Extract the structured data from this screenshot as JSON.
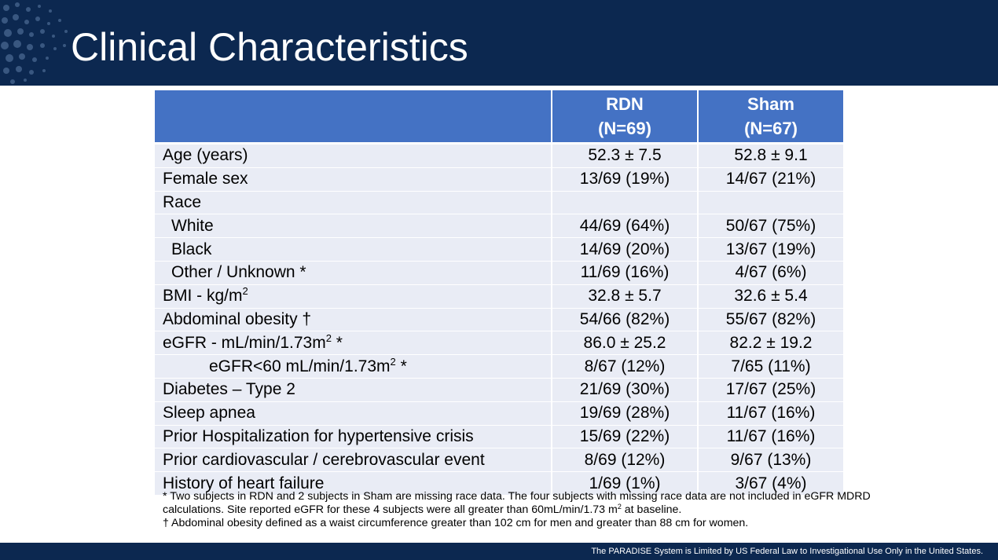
{
  "header": {
    "title": "Clinical Characteristics"
  },
  "table": {
    "columns": [
      "",
      "RDN\n(N=69)",
      "Sham\n(N=67)"
    ],
    "col_rdn": {
      "line1": "RDN",
      "line2": "(N=69)"
    },
    "col_sham": {
      "line1": "Sham",
      "line2": "(N=67)"
    },
    "rows": [
      {
        "label": "Age (years)",
        "rdn": "52.3 ± 7.5",
        "sham": "52.8 ± 9.1"
      },
      {
        "label": "Female sex",
        "rdn": "13/69 (19%)",
        "sham": "14/67 (21%)"
      },
      {
        "label": "Race",
        "rdn": "",
        "sham": ""
      },
      {
        "label": "White",
        "rdn": "44/69 (64%)",
        "sham": "50/67 (75%)"
      },
      {
        "label": "Black",
        "rdn": "14/69 (20%)",
        "sham": "13/67 (19%)"
      },
      {
        "label": "Other / Unknown *",
        "rdn": "11/69 (16%)",
        "sham": "4/67 (6%)"
      },
      {
        "label": "BMI - kg/m",
        "label_sup": "2",
        "rdn": "32.8 ± 5.7",
        "sham": "32.6 ± 5.4"
      },
      {
        "label": "Abdominal obesity †",
        "rdn": "54/66 (82%)",
        "sham": "55/67 (82%)"
      },
      {
        "label": "eGFR - mL/min/1.73m",
        "label_sup": "2",
        "label_after": " *",
        "rdn": "86.0 ± 25.2",
        "sham": "82.2 ± 19.2"
      },
      {
        "label": "eGFR<60 mL/min/1.73m",
        "label_sup": "2",
        "label_after": " *",
        "rdn": "8/67 (12%)",
        "sham": "7/65 (11%)"
      },
      {
        "label": "Diabetes – Type 2",
        "rdn": "21/69 (30%)",
        "sham": "17/67 (25%)"
      },
      {
        "label": "Sleep apnea",
        "rdn": "19/69 (28%)",
        "sham": "11/67 (16%)"
      },
      {
        "label": "Prior Hospitalization for hypertensive crisis",
        "rdn": "15/69 (22%)",
        "sham": "11/67 (16%)"
      },
      {
        "label": "Prior cardiovascular / cerebrovascular event",
        "rdn": "8/69 (12%)",
        "sham": "9/67 (13%)"
      },
      {
        "label": "History of heart failure",
        "rdn": "1/69 (1%)",
        "sham": "3/67 (4%)"
      }
    ]
  },
  "footnotes": {
    "note1_line1": "* Two subjects in RDN and 2 subjects in Sham are missing race data.  The four subjects with missing race data are not included in eGFR MDRD",
    "note1_line2a": "calculations. Site reported eGFR for these 4 subjects were all greater than 60mL/min/1.73 m",
    "note1_line2_sup": "2",
    "note1_line2b": " at baseline.",
    "note2": "†  Abdominal obesity defined as a waist circumference greater than 102 cm for men and greater than 88 cm for women."
  },
  "footer": {
    "disclaimer": "The PARADISE System is Limited by US Federal Law to Investigational Use Only in the United States."
  },
  "colors": {
    "header_bg": "#0c2850",
    "table_header": "#4472c4",
    "table_row": "#e9ecf5"
  }
}
